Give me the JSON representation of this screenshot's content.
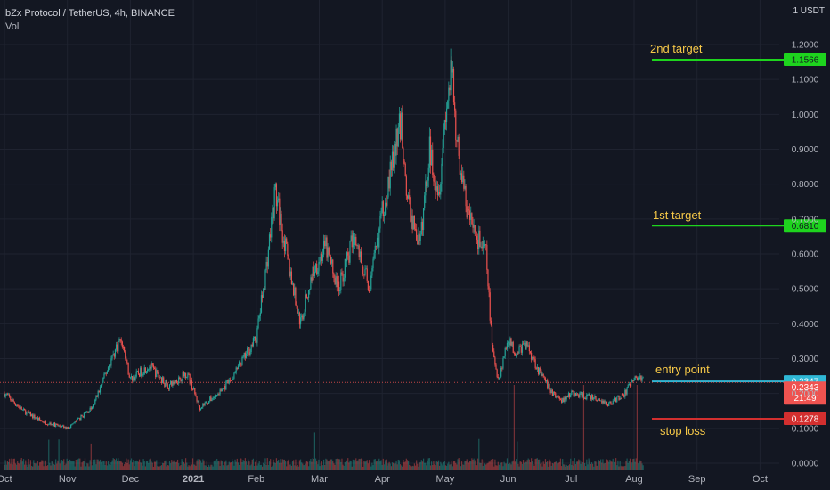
{
  "header": {
    "symbol_line": "bZx Protocol / TetherUS, 4h, BINANCE",
    "vol_label": "Vol"
  },
  "price_axis": {
    "unit": "1 USDT"
  },
  "colors": {
    "background": "#131722",
    "grid": "#1f2330",
    "axis_text": "#b2b5be",
    "up_candle": "#26a69a",
    "down_candle": "#ef5350",
    "target_line": "#1ed41e",
    "entry_line": "#2fb8d6",
    "stop_line": "#d32f2f",
    "annotation_text": "#f7c948"
  },
  "annotations": {
    "second_target": {
      "label": "2nd target",
      "price": 1.1566,
      "tag": "1.1566"
    },
    "first_target": {
      "label": "1st target",
      "price": 0.681,
      "tag": "0.6810"
    },
    "entry_point": {
      "label": "entry point",
      "price": 0.2347,
      "tag": "0.2347"
    },
    "stop_loss": {
      "label": "stop loss",
      "price": 0.1278,
      "tag": "0.1278"
    },
    "last_price": {
      "price": 0.2343,
      "tag": "0.2343",
      "countdown": "21:49"
    }
  },
  "chart_data": {
    "type": "candlestick",
    "title": "",
    "xlabel": "",
    "ylabel": "",
    "x_ticks": [
      "Oct",
      "Nov",
      "Dec",
      "2021",
      "Feb",
      "Mar",
      "Apr",
      "May",
      "Jun",
      "Jul",
      "Aug",
      "Sep",
      "Oct"
    ],
    "y_ticks": [
      "0.0000",
      "0.1000",
      "0.2000",
      "0.3000",
      "0.4000",
      "0.5000",
      "0.6000",
      "0.7000",
      "0.8000",
      "0.9000",
      "1.0000",
      "1.1000",
      "1.2000"
    ],
    "ylim": [
      -0.02,
      1.26
    ],
    "grid": true,
    "price_path": {
      "x_months": [
        0,
        0.3,
        0.6,
        1.0,
        1.4,
        1.7,
        1.85,
        2.0,
        2.3,
        2.6,
        2.9,
        3.1,
        3.4,
        3.6,
        3.8,
        4.0,
        4.15,
        4.3,
        4.5,
        4.7,
        4.9,
        5.1,
        5.3,
        5.55,
        5.8,
        6.0,
        6.15,
        6.3,
        6.4,
        6.6,
        6.75,
        6.9,
        7.0,
        7.1,
        7.2,
        7.35,
        7.5,
        7.65,
        7.75,
        7.85,
        8.0,
        8.1,
        8.3,
        8.5,
        8.7,
        8.85,
        9.0,
        9.3,
        9.6,
        9.85,
        10.0,
        10.1,
        10.15
      ],
      "close": [
        0.2,
        0.15,
        0.12,
        0.1,
        0.16,
        0.3,
        0.36,
        0.24,
        0.28,
        0.22,
        0.26,
        0.16,
        0.2,
        0.24,
        0.3,
        0.36,
        0.55,
        0.78,
        0.58,
        0.4,
        0.55,
        0.62,
        0.5,
        0.65,
        0.5,
        0.72,
        0.85,
        0.98,
        0.75,
        0.62,
        0.9,
        0.78,
        1.0,
        1.12,
        0.9,
        0.72,
        0.65,
        0.6,
        0.32,
        0.24,
        0.36,
        0.32,
        0.34,
        0.26,
        0.2,
        0.18,
        0.2,
        0.19,
        0.17,
        0.2,
        0.24,
        0.25,
        0.2343
      ]
    },
    "volume_spike_months": [
      8.1,
      9.2,
      10.05
    ]
  }
}
